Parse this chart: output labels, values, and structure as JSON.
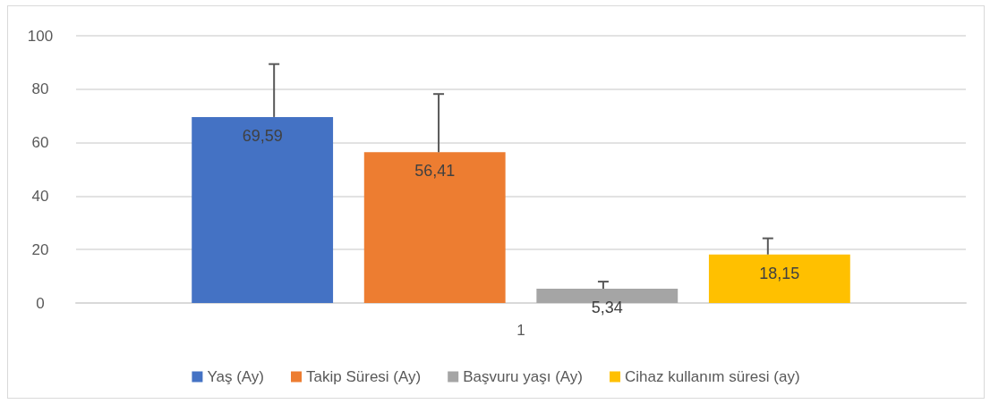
{
  "chart_data": {
    "type": "bar",
    "categories": [
      "1"
    ],
    "series": [
      {
        "name": "Yaş (Ay)",
        "color": "#4472c4",
        "values": [
          69.59
        ],
        "errors": [
          [
            69.59,
            89.4
          ]
        ],
        "value_labels": [
          "69,59"
        ]
      },
      {
        "name": "Takip Süresi (Ay)",
        "color": "#ed7d31",
        "values": [
          56.41
        ],
        "errors": [
          [
            56.41,
            78.2
          ]
        ],
        "value_labels": [
          "56,41"
        ]
      },
      {
        "name": "Başvuru yaşı (Ay)",
        "color": "#a5a5a5",
        "values": [
          5.34
        ],
        "errors": [
          [
            5.34,
            8.0
          ]
        ],
        "value_labels": [
          "5,34"
        ]
      },
      {
        "name": "Cihaz kullanım süresi (ay)",
        "color": "#ffc000",
        "values": [
          18.15
        ],
        "errors": [
          [
            18.15,
            24.2
          ]
        ],
        "value_labels": [
          "18,15"
        ]
      }
    ],
    "ylim": [
      0,
      100
    ],
    "yticks": [
      0,
      20,
      40,
      60,
      80,
      100
    ],
    "grid": "y",
    "legend": "bottom"
  }
}
